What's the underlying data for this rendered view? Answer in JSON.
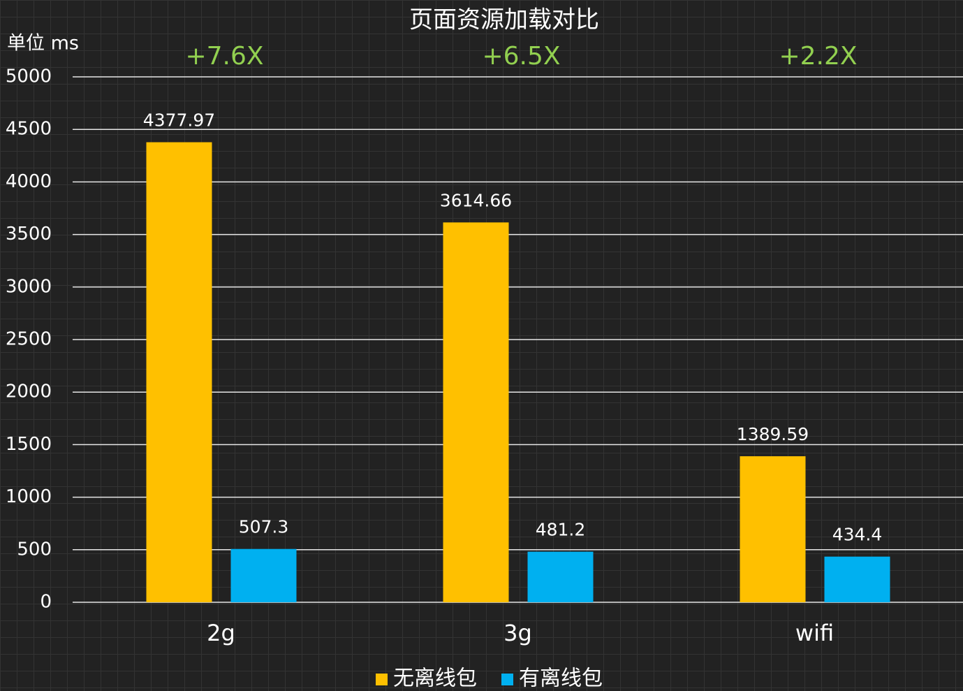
{
  "chart_data": {
    "type": "bar",
    "title": "页面资源加载对比",
    "y_axis_label": "单位 ms",
    "categories": [
      "2g",
      "3g",
      "wifi"
    ],
    "annotations": [
      "+7.6X",
      "+6.5X",
      "+2.2X"
    ],
    "annotation_color": "#92d050",
    "series": [
      {
        "name": "无离线包",
        "color": "#ffc000",
        "values": [
          4377.97,
          3614.66,
          1389.59
        ]
      },
      {
        "name": "有离线包",
        "color": "#00b0f0",
        "values": [
          507.3,
          481.2,
          434.4
        ]
      }
    ],
    "ylim": [
      0,
      5000
    ],
    "yticks": [
      0,
      500,
      1000,
      1500,
      2000,
      2500,
      3000,
      3500,
      4000,
      4500,
      5000
    ],
    "grid": true,
    "legend": "bottom"
  }
}
